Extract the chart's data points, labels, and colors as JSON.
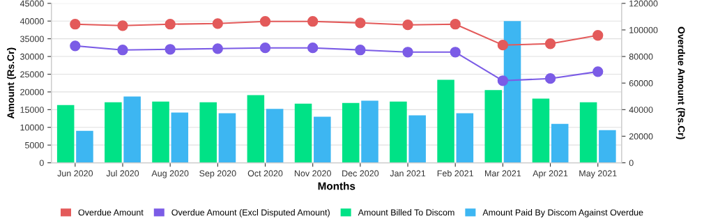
{
  "chart_data": {
    "type": "bar",
    "xlabel": "Months",
    "ylabel": "Amount (Rs.Cr)",
    "y2label": "Overdue Amount (Rs.Cr)",
    "categories": [
      "Jun 2020",
      "Jul 2020",
      "Aug 2020",
      "Sep 2020",
      "Oct 2020",
      "Nov 2020",
      "Dec 2020",
      "Jan 2021",
      "Feb 2021",
      "Mar 2021",
      "Apr 2021",
      "May 2021"
    ],
    "series": [
      {
        "name": "Overdue Amount",
        "type": "line",
        "axis": "y2",
        "color": "#e35a5a",
        "values": [
          104300,
          103200,
          104300,
          104800,
          106400,
          106400,
          105300,
          103800,
          104300,
          88600,
          89600,
          95900
        ]
      },
      {
        "name": "Overdue Amount (Excl Disputed Amount)",
        "type": "line",
        "axis": "y2",
        "color": "#7b5ce6",
        "values": [
          88000,
          84900,
          85400,
          85900,
          86500,
          86500,
          84900,
          83300,
          83300,
          61800,
          63400,
          68600
        ]
      },
      {
        "name": "Amount Billed To Discom",
        "color": "#00e286",
        "values": [
          16300,
          17100,
          17300,
          17100,
          19100,
          16700,
          16900,
          17300,
          23400,
          20500,
          18100,
          17100
        ]
      },
      {
        "name": "Amount Paid By Discom Against Overdue",
        "color": "#3db6f2",
        "values": [
          9000,
          18700,
          14200,
          14000,
          15200,
          13000,
          17500,
          13400,
          14000,
          40000,
          11000,
          9200
        ]
      }
    ],
    "ylim": [
      0,
      45000
    ],
    "yticks": [
      0,
      5000,
      10000,
      15000,
      20000,
      25000,
      30000,
      35000,
      40000,
      45000
    ],
    "y2lim": [
      0,
      120000
    ],
    "y2ticks": [
      0,
      20000,
      40000,
      60000,
      80000,
      100000,
      120000
    ],
    "grid": "y",
    "legend": "bottom",
    "marker": "circle"
  }
}
